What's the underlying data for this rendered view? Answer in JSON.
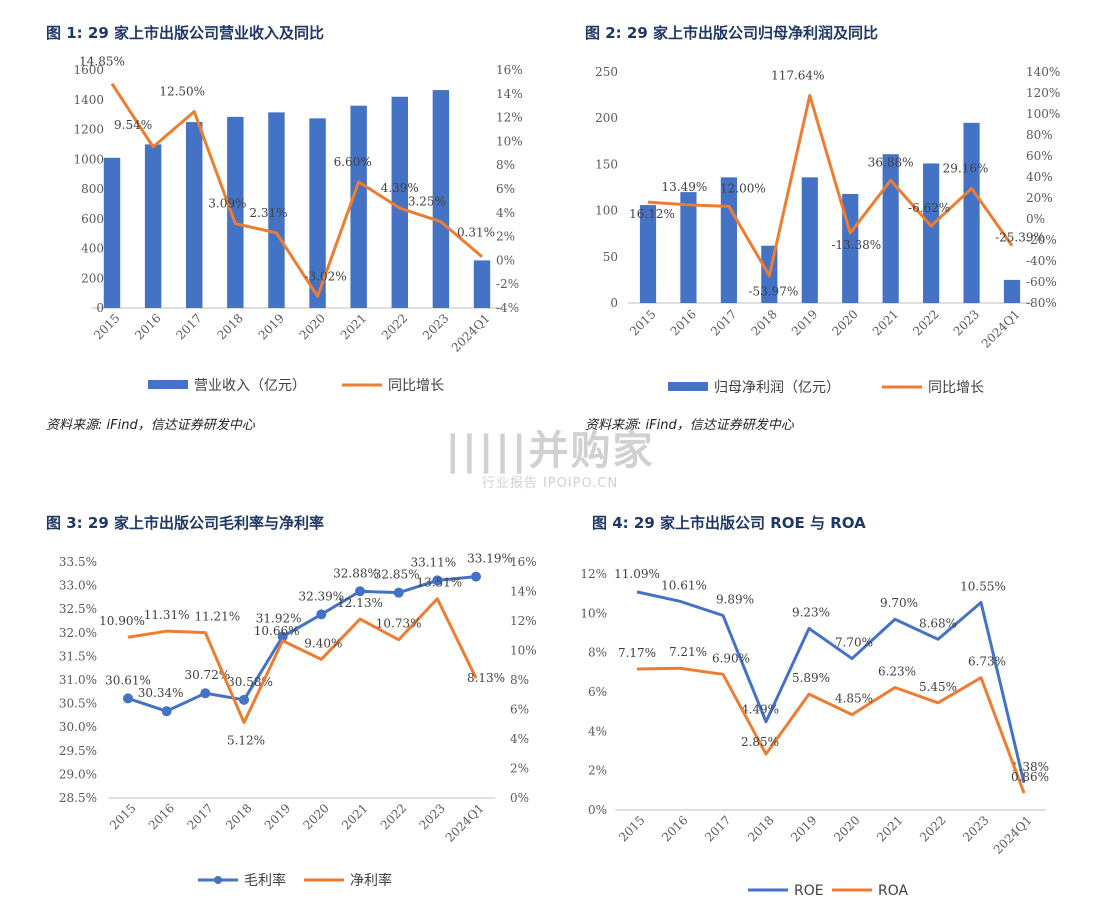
{
  "figures": {
    "fig1": {
      "title": "图 1:  29 家上市出版公司营业收入及同比",
      "source": "资料来源: iFind，信达证券研发中心"
    },
    "fig2": {
      "title": "图 2:  29 家上市出版公司归母净利润及同比",
      "source": "资料来源: iFind，信达证券研发中心"
    },
    "fig3": {
      "title": "图 3:  29 家上市出版公司毛利率与净利率"
    },
    "fig4": {
      "title": "图 4:  29 家上市出版公司 ROE 与 ROA"
    }
  },
  "watermark": {
    "main": "|||||并购家",
    "sub": "行业报告 IPOIPO.CN"
  },
  "colors": {
    "blue": "#4472c4",
    "orange": "#ed7d31",
    "axis": "#bfbfbf",
    "text": "#595959"
  },
  "chart_data": [
    {
      "id": "fig1",
      "type": "bar+line",
      "categories": [
        "2015",
        "2016",
        "2017",
        "2018",
        "2019",
        "2020",
        "2021",
        "2022",
        "2023",
        "2024Q1"
      ],
      "series": [
        {
          "name": "营业收入（亿元）",
          "type": "bar",
          "axis": "left",
          "values": [
            1010,
            1100,
            1250,
            1285,
            1315,
            1275,
            1360,
            1420,
            1465,
            320
          ]
        },
        {
          "name": "同比增长",
          "type": "line",
          "axis": "right",
          "values": [
            14.85,
            9.54,
            12.5,
            3.09,
            2.31,
            -3.02,
            6.6,
            4.39,
            3.25,
            0.31
          ],
          "labels": [
            "14.85%",
            "9.54%",
            "12.50%",
            "3.09%",
            "2.31%",
            "-3.02%",
            "6.60%",
            "4.39%",
            "3.25%",
            "0.31%"
          ]
        }
      ],
      "left_axis": {
        "min": 0,
        "max": 1600,
        "step": 200,
        "ticks": [
          "0",
          "200",
          "400",
          "600",
          "800",
          "1000",
          "1200",
          "1400",
          "1600"
        ]
      },
      "right_axis": {
        "min": -4,
        "max": 16,
        "step": 2,
        "ticks": [
          "-4%",
          "-2%",
          "0%",
          "2%",
          "4%",
          "6%",
          "8%",
          "10%",
          "12%",
          "14%",
          "16%"
        ]
      }
    },
    {
      "id": "fig2",
      "type": "bar+line",
      "categories": [
        "2015",
        "2016",
        "2017",
        "2018",
        "2019",
        "2020",
        "2021",
        "2022",
        "2023",
        "2024Q1"
      ],
      "series": [
        {
          "name": "归母净利润（亿元）",
          "type": "bar",
          "axis": "left",
          "values": [
            106,
            120,
            136,
            62,
            136,
            118,
            161,
            151,
            195,
            25
          ]
        },
        {
          "name": "同比增长",
          "type": "line",
          "axis": "right",
          "values": [
            16.12,
            13.49,
            12.0,
            -53.97,
            117.64,
            -13.38,
            36.88,
            -6.62,
            29.16,
            -25.39
          ],
          "labels": [
            "16.12%",
            "13.49%",
            "12.00%",
            "-53.97%",
            "117.64%",
            "-13.38%",
            "36.88%",
            "-6.62%",
            "29.16%",
            "-25.39%"
          ]
        }
      ],
      "left_axis": {
        "min": 0,
        "max": 250,
        "step": 50,
        "ticks": [
          "0",
          "50",
          "100",
          "150",
          "200",
          "250"
        ]
      },
      "right_axis": {
        "min": -80,
        "max": 140,
        "step": 20,
        "ticks": [
          "-80%",
          "-60%",
          "-40%",
          "-20%",
          "0%",
          "20%",
          "40%",
          "60%",
          "80%",
          "100%",
          "120%",
          "140%"
        ]
      }
    },
    {
      "id": "fig3",
      "type": "line",
      "categories": [
        "2015",
        "2016",
        "2017",
        "2018",
        "2019",
        "2020",
        "2021",
        "2022",
        "2023",
        "2024Q1"
      ],
      "series": [
        {
          "name": "毛利率",
          "type": "line",
          "axis": "left",
          "markers": true,
          "values": [
            30.61,
            30.34,
            30.72,
            30.58,
            31.92,
            32.39,
            32.88,
            32.85,
            33.11,
            33.19
          ],
          "labels": [
            "30.61%",
            "30.34%",
            "30.72%",
            "30.58%",
            "31.92%",
            "32.39%",
            "32.88%",
            "32.85%",
            "33.11%",
            "33.19%"
          ]
        },
        {
          "name": "净利率",
          "type": "line",
          "axis": "right",
          "values": [
            10.9,
            11.31,
            11.21,
            5.12,
            10.66,
            9.4,
            12.13,
            10.73,
            13.51,
            8.13
          ],
          "labels": [
            "10.90%",
            "11.31%",
            "11.21%",
            "5.12%",
            "10.66%",
            "9.40%",
            "12.13%",
            "10.73%",
            "13.51%",
            "8.13%"
          ]
        }
      ],
      "left_axis": {
        "min": 28.5,
        "max": 33.5,
        "step": 0.5,
        "ticks": [
          "28.5%",
          "29.0%",
          "29.5%",
          "30.0%",
          "30.5%",
          "31.0%",
          "31.5%",
          "32.0%",
          "32.5%",
          "33.0%",
          "33.5%"
        ]
      },
      "right_axis": {
        "min": 0,
        "max": 16,
        "step": 2,
        "ticks": [
          "0%",
          "2%",
          "4%",
          "6%",
          "8%",
          "10%",
          "12%",
          "14%",
          "16%"
        ]
      }
    },
    {
      "id": "fig4",
      "type": "line",
      "categories": [
        "2015",
        "2016",
        "2017",
        "2018",
        "2019",
        "2020",
        "2021",
        "2022",
        "2023",
        "2024Q1"
      ],
      "series": [
        {
          "name": "ROE",
          "type": "line",
          "axis": "left",
          "values": [
            11.09,
            10.61,
            9.89,
            4.49,
            9.23,
            7.7,
            9.7,
            8.68,
            10.55,
            1.38
          ],
          "labels": [
            "11.09%",
            "10.61%",
            "9.89%",
            "4.49%",
            "9.23%",
            "7.70%",
            "9.70%",
            "8.68%",
            "10.55%",
            "1.38%"
          ]
        },
        {
          "name": "ROA",
          "type": "line",
          "axis": "left",
          "values": [
            7.17,
            7.21,
            6.9,
            2.85,
            5.89,
            4.85,
            6.23,
            5.45,
            6.73,
            0.86
          ],
          "labels": [
            "7.17%",
            "7.21%",
            "6.90%",
            "2.85%",
            "5.89%",
            "4.85%",
            "6.23%",
            "5.45%",
            "6.73%",
            "0.86%"
          ]
        }
      ],
      "left_axis": {
        "min": 0,
        "max": 12,
        "step": 2,
        "ticks": [
          "0%",
          "2%",
          "4%",
          "6%",
          "8%",
          "10%",
          "12%"
        ]
      }
    }
  ]
}
